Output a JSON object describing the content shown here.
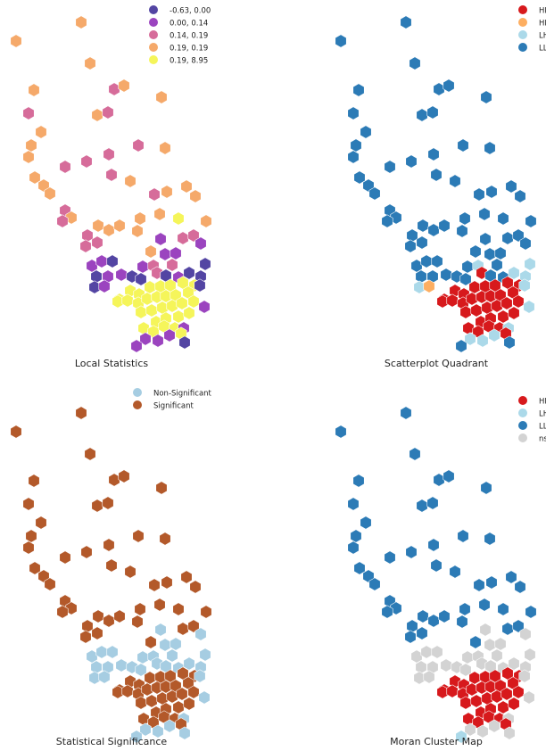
{
  "chart_data": [
    {
      "type": "map",
      "title": "Local Statistics",
      "legend": {
        "placement": "top-right",
        "entries": [
          {
            "label": "-0.63,  0.00",
            "color": "#5345a3"
          },
          {
            "label": " 0.00,  0.14",
            "color": "#9b44bf"
          },
          {
            "label": " 0.14,  0.19",
            "color": "#d66c9a"
          },
          {
            "label": " 0.19,  0.19",
            "color": "#f5a96a"
          },
          {
            "label": " 0.19,  8.95",
            "color": "#f5f55a"
          }
        ]
      }
    },
    {
      "type": "map",
      "title": "Scatterplot Quadrant",
      "legend": {
        "placement": "top-right",
        "entries": [
          {
            "label": "HH",
            "color": "#d7191c"
          },
          {
            "label": "HL",
            "color": "#fdae61"
          },
          {
            "label": "LH",
            "color": "#abd9e9"
          },
          {
            "label": "LL",
            "color": "#2c7bb6"
          }
        ]
      }
    },
    {
      "type": "map",
      "title": "Statistical Significance",
      "legend": {
        "placement": "top-right",
        "entries": [
          {
            "label": "Non-Significant",
            "color": "#a6cde2"
          },
          {
            "label": "Significant",
            "color": "#b3592a"
          }
        ]
      }
    },
    {
      "type": "map",
      "title": "Moran Cluster Map",
      "legend": {
        "placement": "top-right",
        "entries": [
          {
            "label": "HH",
            "color": "#d7191c"
          },
          {
            "label": "LH",
            "color": "#abd9e9"
          },
          {
            "label": "LL",
            "color": "#2c7bb6"
          },
          {
            "label": "ns",
            "color": "#d3d3d3"
          }
        ]
      }
    }
  ]
}
